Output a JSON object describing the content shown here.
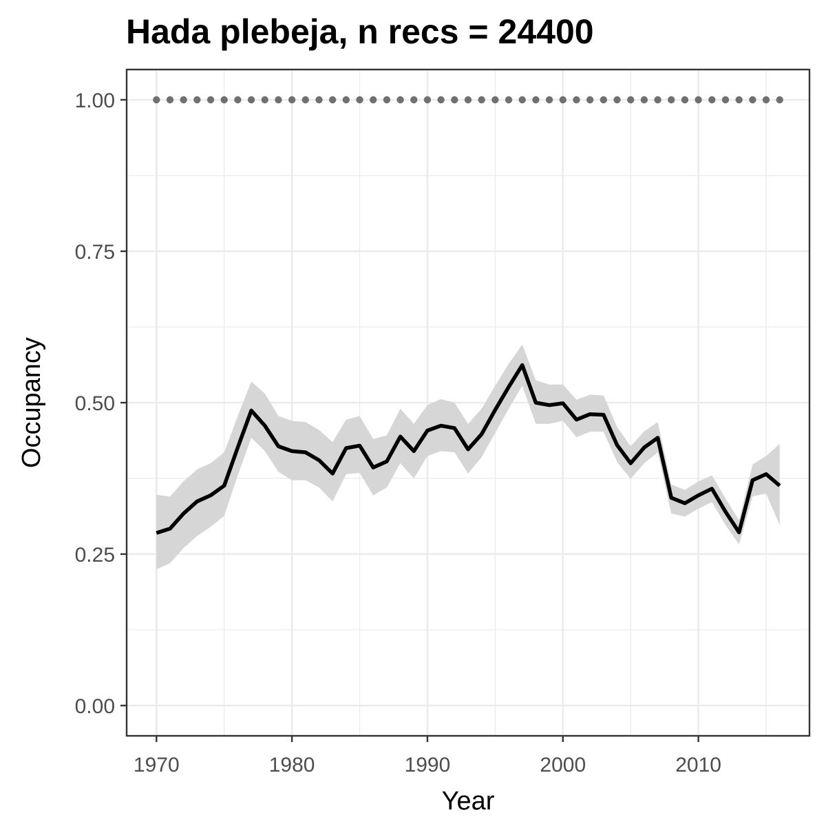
{
  "chart_data": {
    "type": "line",
    "title": "Hada plebeja, n recs = 24400",
    "xlabel": "Year",
    "ylabel": "Occupancy",
    "xlim": [
      1967.8,
      2018.2
    ],
    "ylim": [
      -0.05,
      1.05
    ],
    "x_ticks": [
      1970,
      1980,
      1990,
      2000,
      2010
    ],
    "x_tick_labels": [
      "1970",
      "1980",
      "1990",
      "2000",
      "2010"
    ],
    "y_ticks": [
      0,
      0.25,
      0.5,
      0.75,
      1.0
    ],
    "y_tick_labels": [
      "0.00",
      "0.25",
      "0.50",
      "0.75",
      "1.00"
    ],
    "grid": true,
    "legend": "none",
    "colors": {
      "line": "#000000",
      "ribbon": "#d6d6d6",
      "reference_points": "#707070",
      "grid": "#ebebeb",
      "panel_border": "#333333"
    },
    "series": [
      {
        "type": "line_with_ribbon",
        "x": [
          1970,
          1971,
          1972,
          1973,
          1974,
          1975,
          1976,
          1977,
          1978,
          1979,
          1980,
          1981,
          1982,
          1983,
          1984,
          1985,
          1986,
          1987,
          1988,
          1989,
          1990,
          1991,
          1992,
          1993,
          1994,
          1995,
          1996,
          1997,
          1998,
          1999,
          2000,
          2001,
          2002,
          2003,
          2004,
          2005,
          2006,
          2007,
          2008,
          2009,
          2010,
          2011,
          2012,
          2013,
          2014,
          2015,
          2016
        ],
        "values": [
          0.285,
          0.292,
          0.317,
          0.337,
          0.347,
          0.363,
          0.426,
          0.487,
          0.462,
          0.428,
          0.42,
          0.418,
          0.405,
          0.383,
          0.425,
          0.429,
          0.393,
          0.403,
          0.444,
          0.42,
          0.454,
          0.462,
          0.458,
          0.423,
          0.448,
          0.488,
          0.526,
          0.562,
          0.5,
          0.496,
          0.499,
          0.472,
          0.481,
          0.48,
          0.43,
          0.4,
          0.426,
          0.442,
          0.343,
          0.334,
          0.347,
          0.358,
          0.32,
          0.286,
          0.372,
          0.382,
          0.363
        ],
        "lower": [
          0.225,
          0.235,
          0.26,
          0.28,
          0.295,
          0.313,
          0.38,
          0.442,
          0.42,
          0.386,
          0.372,
          0.372,
          0.36,
          0.337,
          0.382,
          0.384,
          0.347,
          0.36,
          0.4,
          0.375,
          0.412,
          0.42,
          0.418,
          0.383,
          0.41,
          0.45,
          0.49,
          0.528,
          0.465,
          0.465,
          0.47,
          0.443,
          0.452,
          0.452,
          0.402,
          0.374,
          0.4,
          0.418,
          0.317,
          0.312,
          0.325,
          0.336,
          0.298,
          0.266,
          0.345,
          0.35,
          0.298
        ],
        "upper": [
          0.348,
          0.345,
          0.37,
          0.39,
          0.4,
          0.418,
          0.478,
          0.535,
          0.515,
          0.478,
          0.47,
          0.468,
          0.455,
          0.435,
          0.472,
          0.478,
          0.44,
          0.446,
          0.49,
          0.465,
          0.496,
          0.506,
          0.5,
          0.465,
          0.49,
          0.528,
          0.564,
          0.596,
          0.537,
          0.53,
          0.53,
          0.505,
          0.513,
          0.512,
          0.46,
          0.428,
          0.453,
          0.468,
          0.365,
          0.356,
          0.37,
          0.38,
          0.342,
          0.306,
          0.398,
          0.412,
          0.432
        ]
      },
      {
        "type": "reference_points",
        "x": [
          1970,
          1971,
          1972,
          1973,
          1974,
          1975,
          1976,
          1977,
          1978,
          1979,
          1980,
          1981,
          1982,
          1983,
          1984,
          1985,
          1986,
          1987,
          1988,
          1989,
          1990,
          1991,
          1992,
          1993,
          1994,
          1995,
          1996,
          1997,
          1998,
          1999,
          2000,
          2001,
          2002,
          2003,
          2004,
          2005,
          2006,
          2007,
          2008,
          2009,
          2010,
          2011,
          2012,
          2013,
          2014,
          2015,
          2016
        ],
        "values": [
          1,
          1,
          1,
          1,
          1,
          1,
          1,
          1,
          1,
          1,
          1,
          1,
          1,
          1,
          1,
          1,
          1,
          1,
          1,
          1,
          1,
          1,
          1,
          1,
          1,
          1,
          1,
          1,
          1,
          1,
          1,
          1,
          1,
          1,
          1,
          1,
          1,
          1,
          1,
          1,
          1,
          1,
          1,
          1,
          1,
          1,
          1
        ]
      }
    ]
  }
}
